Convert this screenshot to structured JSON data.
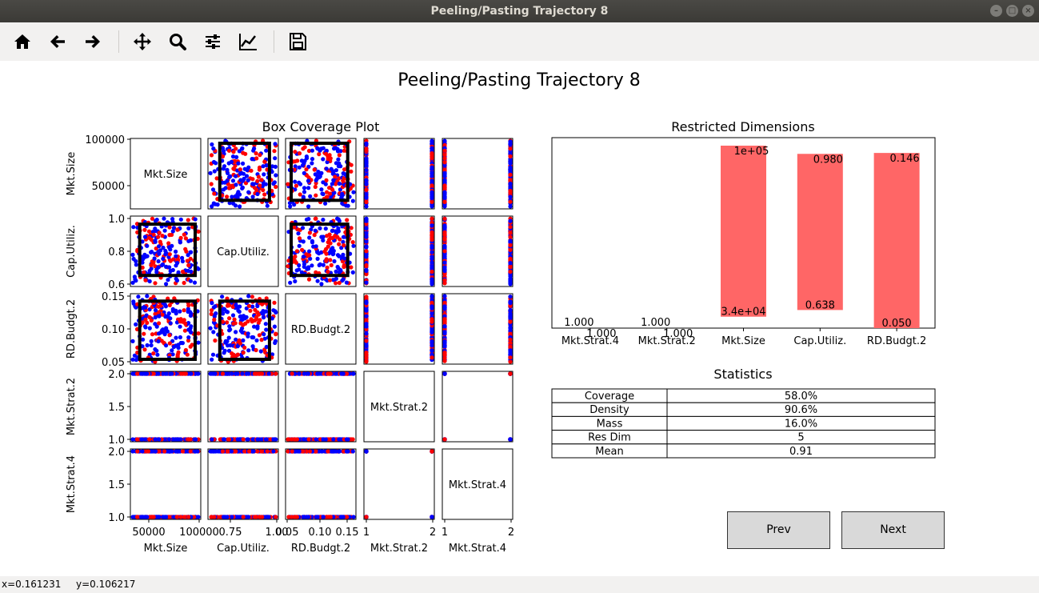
{
  "window": {
    "title": "Peeling/Pasting Trajectory 8"
  },
  "toolbar": {
    "icons": [
      "home-icon",
      "back-arrow-icon",
      "forward-arrow-icon",
      "pan-icon",
      "zoom-icon",
      "configure-subplots-icon",
      "edit-axis-icon",
      "save-icon"
    ]
  },
  "figure": {
    "suptitle": "Peeling/Pasting Trajectory 8",
    "colors": {
      "red": "#ff0000",
      "blue": "#0000ff",
      "bar": "#ff6666",
      "box": "#000000"
    }
  },
  "scatter_matrix": {
    "title": "Box Coverage Plot",
    "dimensions": [
      "Mkt.Size",
      "Cap.Utiliz.",
      "RD.Budgt.2",
      "Mkt.Strat.2",
      "Mkt.Strat.4"
    ],
    "ranges": {
      "Mkt.Size": [
        30000,
        100000
      ],
      "Cap.Utiliz.": [
        0.6,
        1.0
      ],
      "RD.Budgt.2": [
        0.05,
        0.15
      ],
      "Mkt.Strat.2": [
        1,
        2
      ],
      "Mkt.Strat.4": [
        1,
        2
      ]
    },
    "box": {
      "Mkt.Size": [
        34000,
        100000
      ],
      "Cap.Utiliz.": [
        0.638,
        0.98
      ],
      "RD.Budgt.2": [
        0.05,
        0.146
      ]
    },
    "ytick_labels": {
      "Mkt.Size": [
        "100000",
        "50000"
      ],
      "Cap.Utiliz.": [
        "1.0",
        "0.8",
        "0.6"
      ],
      "RD.Budgt.2": [
        "0.15",
        "0.10",
        "0.05"
      ],
      "Mkt.Strat.2": [
        "2.0",
        "1.5",
        "1.0"
      ],
      "Mkt.Strat.4": [
        "2.0",
        "1.5",
        "1.0"
      ]
    },
    "xtick_labels": {
      "Mkt.Size": [
        "50000",
        "100000"
      ],
      "Cap.Utiliz.": [
        "0.75",
        "1.00"
      ],
      "RD.Budgt.2": [
        "0.05",
        "0.10",
        "0.15"
      ],
      "Mkt.Strat.2": [
        "1",
        "2"
      ],
      "Mkt.Strat.4": [
        "1",
        "2"
      ]
    }
  },
  "chart_data": {
    "type": "bar",
    "title": "Restricted Dimensions",
    "categories": [
      "Mkt.Strat.4",
      "Mkt.Strat.2",
      "Mkt.Size",
      "Cap.Utiliz.",
      "RD.Budgt.2"
    ],
    "restricted_fraction": [
      [
        0.0,
        0.0
      ],
      [
        0.0,
        0.0
      ],
      [
        0.06,
        1.0
      ],
      [
        0.095,
        0.955
      ],
      [
        0.0,
        0.96
      ]
    ],
    "lower_labels": [
      "1.000",
      "1.000",
      "3.4e+04",
      "0.638",
      "0.050"
    ],
    "upper_labels": [
      "1.000",
      "1.000",
      "1e+05",
      "0.980",
      "0.146"
    ]
  },
  "statistics": {
    "title": "Statistics",
    "rows": [
      {
        "label": "Coverage",
        "value": "58.0%"
      },
      {
        "label": "Density",
        "value": "90.6%"
      },
      {
        "label": "Mass",
        "value": "16.0%"
      },
      {
        "label": "Res Dim",
        "value": "5"
      },
      {
        "label": "Mean",
        "value": "0.91"
      }
    ]
  },
  "buttons": {
    "prev": "Prev",
    "next": "Next"
  },
  "status": {
    "x": "x=0.161231",
    "y": "y=0.106217"
  }
}
